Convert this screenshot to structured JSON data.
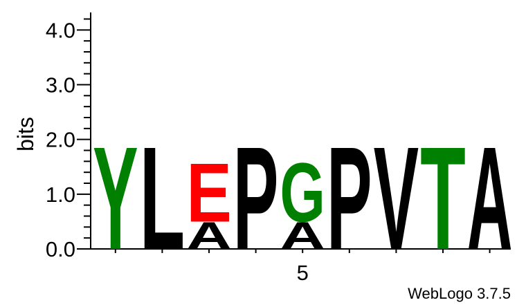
{
  "chart_data": {
    "type": "sequence-logo",
    "ylabel": "bits",
    "ylim": [
      0,
      4.32
    ],
    "yticks_major": [
      0.0,
      1.0,
      2.0,
      3.0,
      4.0
    ],
    "ytick_labels": [
      "0.0",
      "1.0",
      "2.0",
      "3.0",
      "4.0"
    ],
    "xtick_labels": [
      {
        "position": 5,
        "label": "5"
      }
    ],
    "positions": [
      {
        "position": 1,
        "letters": [
          {
            "letter": "Y",
            "height": 1.92,
            "color": "green"
          }
        ]
      },
      {
        "position": 2,
        "letters": [
          {
            "letter": "L",
            "height": 1.92,
            "color": "black"
          }
        ]
      },
      {
        "position": 3,
        "letters": [
          {
            "letter": "A",
            "height": 0.5,
            "color": "black"
          },
          {
            "letter": "E",
            "height": 1.1,
            "color": "red"
          }
        ]
      },
      {
        "position": 4,
        "letters": [
          {
            "letter": "P",
            "height": 1.92,
            "color": "black"
          }
        ]
      },
      {
        "position": 5,
        "letters": [
          {
            "letter": "A",
            "height": 0.5,
            "color": "black"
          },
          {
            "letter": "G",
            "height": 1.1,
            "color": "green"
          }
        ]
      },
      {
        "position": 6,
        "letters": [
          {
            "letter": "P",
            "height": 1.92,
            "color": "black"
          }
        ]
      },
      {
        "position": 7,
        "letters": [
          {
            "letter": "V",
            "height": 1.92,
            "color": "black"
          }
        ]
      },
      {
        "position": 8,
        "letters": [
          {
            "letter": "T",
            "height": 1.92,
            "color": "green"
          }
        ]
      },
      {
        "position": 9,
        "letters": [
          {
            "letter": "A",
            "height": 1.92,
            "color": "black"
          }
        ]
      }
    ],
    "colors": {
      "green": "#008000",
      "red": "#ff0000",
      "black": "#000000"
    }
  },
  "footer": {
    "text": "WebLogo 3.7.5"
  }
}
